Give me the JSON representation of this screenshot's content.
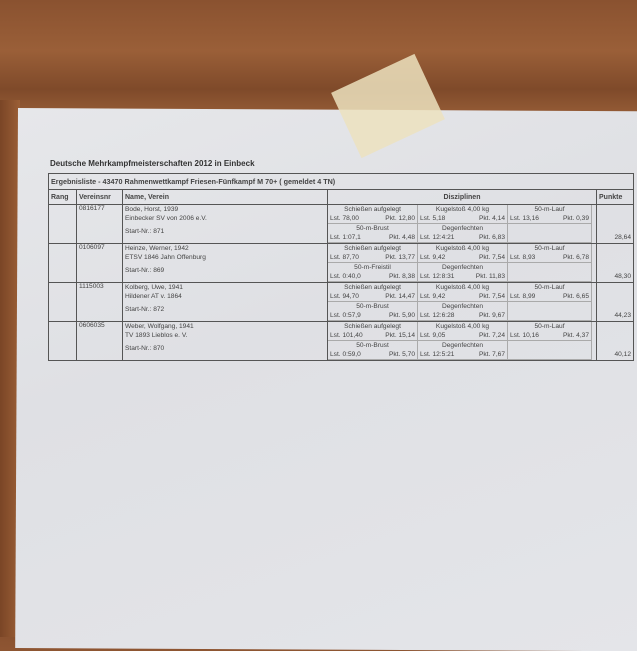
{
  "title": "Deutsche Mehrkampfmeisterschaften 2012 in Einbeck",
  "subtitle": "Ergebnisliste - 43470 Rahmenwettkampf Friesen-Fünfkampf M 70+ ( gemeldet 4 TN)",
  "headers": {
    "rang": "Rang",
    "vereinsnr": "Vereinsnr",
    "name": "Name, Verein",
    "disziplinen": "Disziplinen",
    "punkte": "Punkte"
  },
  "rows": [
    {
      "rang": "",
      "vereinsnr": "0816177",
      "name": "Bode, Horst, 1939",
      "verein": "Einbecker SV von 2006 e.V.",
      "start": "Start-Nr.: 871",
      "d": [
        {
          "n": "Schießen aufgelegt",
          "l": "Lst. 78,00",
          "p": "Pkt. 12,80"
        },
        {
          "n": "Kugelstoß 4,00 kg",
          "l": "Lst. 5,18",
          "p": "Pkt. 4,14"
        },
        {
          "n": "50-m-Lauf",
          "l": "Lst. 13,16",
          "p": "Pkt. 0,39"
        },
        {
          "n": "50-m-Brust",
          "l": "Lst. 1:07,1",
          "p": "Pkt. 4,48"
        },
        {
          "n": "Degenfechten",
          "l": "Lst. 12:4:21",
          "p": "Pkt. 6,83"
        }
      ],
      "punkte": "28,64"
    },
    {
      "rang": "",
      "vereinsnr": "0106097",
      "name": "Heinze, Werner, 1942",
      "verein": "ETSV 1846 Jahn Offenburg",
      "start": "Start-Nr.: 869",
      "d": [
        {
          "n": "Schießen aufgelegt",
          "l": "Lst. 87,70",
          "p": "Pkt. 13,77"
        },
        {
          "n": "Kugelstoß 4,00 kg",
          "l": "Lst. 9,42",
          "p": "Pkt. 7,54"
        },
        {
          "n": "50-m-Lauf",
          "l": "Lst. 8,93",
          "p": "Pkt. 6,78"
        },
        {
          "n": "50-m-Freistil",
          "l": "Lst. 0:40,0",
          "p": "Pkt. 8,38"
        },
        {
          "n": "Degenfechten",
          "l": "Lst. 12:8:31",
          "p": "Pkt. 11,83"
        }
      ],
      "punkte": "48,30"
    },
    {
      "rang": "",
      "vereinsnr": "1115003",
      "name": "Kolberg, Uwe, 1941",
      "verein": "Hildener AT v. 1864",
      "start": "Start-Nr.: 872",
      "d": [
        {
          "n": "Schießen aufgelegt",
          "l": "Lst. 94,70",
          "p": "Pkt. 14,47"
        },
        {
          "n": "Kugelstoß 4,00 kg",
          "l": "Lst. 9,42",
          "p": "Pkt. 7,54"
        },
        {
          "n": "50-m-Lauf",
          "l": "Lst. 8,99",
          "p": "Pkt. 6,65"
        },
        {
          "n": "50-m-Brust",
          "l": "Lst. 0:57,9",
          "p": "Pkt. 5,90"
        },
        {
          "n": "Degenfechten",
          "l": "Lst. 12:6:28",
          "p": "Pkt. 9,67"
        }
      ],
      "punkte": "44,23"
    },
    {
      "rang": "",
      "vereinsnr": "0606035",
      "name": "Weber, Wolfgang, 1941",
      "verein": "TV 1893 Lieblos e. V.",
      "start": "Start-Nr.: 870",
      "d": [
        {
          "n": "Schießen aufgelegt",
          "l": "Lst. 101,40",
          "p": "Pkt. 15,14"
        },
        {
          "n": "Kugelstoß 4,00 kg",
          "l": "Lst. 9,05",
          "p": "Pkt. 7,24"
        },
        {
          "n": "50-m-Lauf",
          "l": "Lst. 10,16",
          "p": "Pkt. 4,37"
        },
        {
          "n": "50-m-Brust",
          "l": "Lst. 0:59,0",
          "p": "Pkt. 5,70"
        },
        {
          "n": "Degenfechten",
          "l": "Lst. 12:5:21",
          "p": "Pkt. 7,67"
        }
      ],
      "punkte": "40,12"
    }
  ]
}
